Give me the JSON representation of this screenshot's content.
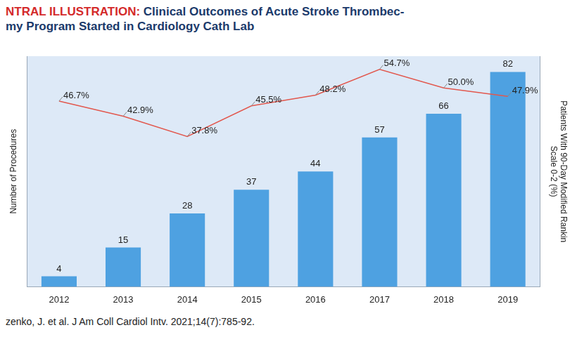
{
  "chart_data": {
    "type": "bar",
    "title_label": "NTRAL ILLUSTRATION:",
    "title": [
      "Clinical Outcomes of Acute Stroke Thrombec-",
      "my Program Started in Cardiology Cath Lab"
    ],
    "footnote": "zenko, J. et al. J Am Coll Cardiol Intv. 2021;14(7):785-92.",
    "categories": [
      "2012",
      "2013",
      "2014",
      "2015",
      "2016",
      "2017",
      "2018",
      "2019"
    ],
    "ylabel": "Number of Procedures",
    "y2label": [
      "Patients With 90-Day Modified Rankin",
      "Scale 0-2 (%)"
    ],
    "series": [
      {
        "type": "bar",
        "color": "#4ea1e1",
        "values": [
          4,
          15,
          28,
          37,
          44,
          57,
          66,
          82
        ]
      },
      {
        "type": "line",
        "axis": "y2",
        "color": "#e2584e",
        "values": [
          46.7,
          42.9,
          37.8,
          45.5,
          48.2,
          54.7,
          50.0,
          47.9
        ],
        "value_labels": [
          "46.7%",
          "42.9%",
          "37.8%",
          "45.5%",
          "48.2%",
          "54.7%",
          "50.0%",
          "47.9%"
        ]
      }
    ],
    "ylim": [
      0,
      88
    ],
    "y2lim": [
      0,
      58
    ],
    "grid": false,
    "data_labels": true,
    "tick_labels": "x"
  }
}
